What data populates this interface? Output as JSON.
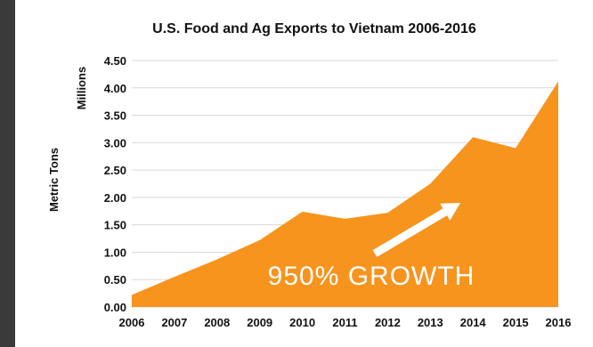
{
  "colors": {
    "area_fill": "#F7941D",
    "frame_dark": "#3a3a3a",
    "annotation_text": "#ffffff",
    "grid": "#d9d9d9"
  },
  "chart_data": {
    "type": "area",
    "title": "U.S. Food and Ag Exports to Vietnam 2006-2016",
    "xlabel": "",
    "ylabel": "Metric Tons",
    "yunit_label": "Millions",
    "x": [
      "2006",
      "2007",
      "2008",
      "2009",
      "2010",
      "2011",
      "2012",
      "2013",
      "2014",
      "2015",
      "2016"
    ],
    "series": [
      {
        "values": [
          0.22,
          0.55,
          0.87,
          1.22,
          1.74,
          1.61,
          1.72,
          2.25,
          3.1,
          2.9,
          4.12
        ]
      }
    ],
    "ylim": [
      0,
      4.5
    ],
    "yticks": [
      "0.00",
      "0.50",
      "1.00",
      "1.50",
      "2.00",
      "2.50",
      "3.00",
      "3.50",
      "4.00",
      "4.50"
    ],
    "ytick_values": [
      0,
      0.5,
      1.0,
      1.5,
      2.0,
      2.5,
      3.0,
      3.5,
      4.0,
      4.5
    ],
    "grid": true,
    "legend": "none",
    "annotation": {
      "text": "950% GROWTH",
      "arrow": "up-right"
    }
  }
}
